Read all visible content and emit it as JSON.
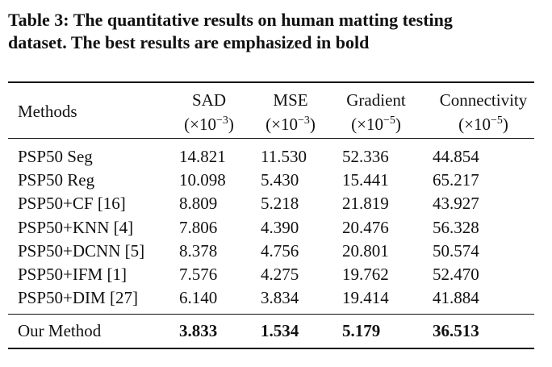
{
  "caption": {
    "lines": [
      "Table 3: The quantitative results on human matting testing",
      "dataset. The best results are emphasized in bold"
    ]
  },
  "table": {
    "header": [
      {
        "name": "Methods"
      },
      {
        "name": "SAD",
        "unit": {
          "prefix": "(×10",
          "exp": "−3",
          "suffix": ")"
        }
      },
      {
        "name": "MSE",
        "unit": {
          "prefix": "(×10",
          "exp": "−3",
          "suffix": ")"
        }
      },
      {
        "name": "Gradient",
        "unit": {
          "prefix": "(×10",
          "exp": "−5",
          "suffix": ")"
        }
      },
      {
        "name": "Connectivity",
        "unit": {
          "prefix": "(×10",
          "exp": "−5",
          "suffix": ")"
        }
      }
    ],
    "rows": [
      [
        "PSP50 Seg",
        "14.821",
        "11.530",
        "52.336",
        "44.854"
      ],
      [
        "PSP50 Reg",
        "10.098",
        "5.430",
        "15.441",
        "65.217"
      ],
      [
        "PSP50+CF [16]",
        "8.809",
        "5.218",
        "21.819",
        "43.927"
      ],
      [
        "PSP50+KNN [4]",
        "7.806",
        "4.390",
        "20.476",
        "56.328"
      ],
      [
        "PSP50+DCNN [5]",
        "8.378",
        "4.756",
        "20.801",
        "50.574"
      ],
      [
        "PSP50+IFM [1]",
        "7.576",
        "4.275",
        "19.762",
        "52.470"
      ],
      [
        "PSP50+DIM [27]",
        "6.140",
        "3.834",
        "19.414",
        "41.884"
      ]
    ],
    "final_row": [
      "Our Method",
      "3.833",
      "1.534",
      "5.179",
      "36.513"
    ]
  }
}
